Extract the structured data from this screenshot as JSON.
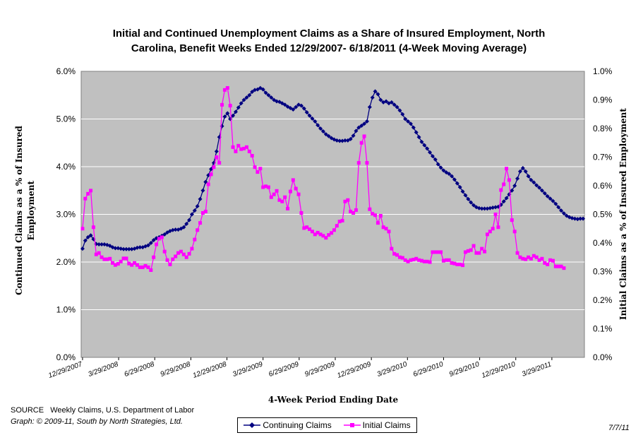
{
  "chart_data": {
    "type": "line",
    "title_lines": [
      "Initial and Continued Unemployment Claims as a Share of Insured Employment, North",
      "Carolina, Benefit Weeks Ended 12/29/2007- 6/18/2011 (4-Week Moving Average)"
    ],
    "xlabel": "4-Week Period Ending Date",
    "ylabel_left_lines": [
      "Continued Claims as a % of Insured",
      "Employment"
    ],
    "ylabel_right": "Initial Claims as a % of Insured Employment",
    "ylim_left": [
      0,
      6
    ],
    "ylim_right": [
      0,
      1
    ],
    "yticks_left": [
      "0.0%",
      "1.0%",
      "2.0%",
      "3.0%",
      "4.0%",
      "5.0%",
      "6.0%"
    ],
    "yticks_right": [
      "0.0%",
      "0.1%",
      "0.2%",
      "0.3%",
      "0.4%",
      "0.5%",
      "0.6%",
      "0.7%",
      "0.8%",
      "0.9%",
      "1.0%"
    ],
    "xticks": [
      "12/29/2007",
      "3/29/2008",
      "6/29/2008",
      "9/29/2008",
      "12/29/2008",
      "3/29/2009",
      "6/29/2009",
      "9/29/2009",
      "12/29/2009",
      "3/29/2010",
      "6/29/2010",
      "9/29/2010",
      "12/29/2010",
      "3/29/2011"
    ],
    "grid": true,
    "legend_position": "bottom",
    "plot_background": "#c0c0c0",
    "series": [
      {
        "name": "Continuing Claims",
        "axis": "left",
        "color": "#000080",
        "marker": "diamond",
        "values": [
          2.28,
          2.45,
          2.52,
          2.56,
          2.48,
          2.38,
          2.37,
          2.37,
          2.37,
          2.36,
          2.34,
          2.31,
          2.29,
          2.29,
          2.28,
          2.27,
          2.27,
          2.27,
          2.27,
          2.28,
          2.3,
          2.31,
          2.31,
          2.33,
          2.35,
          2.4,
          2.46,
          2.5,
          2.52,
          2.55,
          2.58,
          2.62,
          2.65,
          2.67,
          2.68,
          2.68,
          2.7,
          2.73,
          2.8,
          2.88,
          3.0,
          3.08,
          3.17,
          3.32,
          3.5,
          3.68,
          3.82,
          3.95,
          4.08,
          4.32,
          4.62,
          4.85,
          5.05,
          5.12,
          5.0,
          5.07,
          5.15,
          5.24,
          5.33,
          5.4,
          5.45,
          5.5,
          5.57,
          5.61,
          5.62,
          5.65,
          5.62,
          5.55,
          5.5,
          5.45,
          5.4,
          5.37,
          5.36,
          5.33,
          5.3,
          5.26,
          5.23,
          5.2,
          5.25,
          5.3,
          5.28,
          5.22,
          5.14,
          5.07,
          5.01,
          4.95,
          4.87,
          4.8,
          4.74,
          4.68,
          4.64,
          4.6,
          4.57,
          4.55,
          4.54,
          4.54,
          4.55,
          4.55,
          4.58,
          4.65,
          4.75,
          4.82,
          4.86,
          4.9,
          4.95,
          5.25,
          5.45,
          5.58,
          5.52,
          5.4,
          5.35,
          5.37,
          5.33,
          5.35,
          5.3,
          5.25,
          5.18,
          5.1,
          5.0,
          4.95,
          4.9,
          4.82,
          4.72,
          4.62,
          4.52,
          4.45,
          4.38,
          4.3,
          4.22,
          4.15,
          4.05,
          3.98,
          3.92,
          3.88,
          3.85,
          3.8,
          3.73,
          3.65,
          3.57,
          3.48,
          3.4,
          3.32,
          3.25,
          3.19,
          3.15,
          3.13,
          3.12,
          3.12,
          3.12,
          3.13,
          3.14,
          3.15,
          3.16,
          3.2,
          3.27,
          3.34,
          3.42,
          3.5,
          3.6,
          3.75,
          3.9,
          3.97,
          3.9,
          3.8,
          3.72,
          3.67,
          3.61,
          3.56,
          3.5,
          3.44,
          3.38,
          3.33,
          3.28,
          3.22,
          3.15,
          3.08,
          3.02,
          2.97,
          2.94,
          2.92,
          2.91,
          2.9,
          2.91,
          2.91
        ]
      },
      {
        "name": "Initial Claims",
        "axis": "right",
        "color": "#ff00ff",
        "marker": "square",
        "values": [
          0.45,
          0.555,
          0.572,
          0.583,
          0.455,
          0.36,
          0.365,
          0.35,
          0.343,
          0.343,
          0.345,
          0.33,
          0.323,
          0.327,
          0.335,
          0.346,
          0.346,
          0.328,
          0.323,
          0.33,
          0.323,
          0.315,
          0.315,
          0.32,
          0.315,
          0.305,
          0.35,
          0.395,
          0.415,
          0.42,
          0.37,
          0.34,
          0.325,
          0.343,
          0.353,
          0.365,
          0.37,
          0.36,
          0.35,
          0.362,
          0.38,
          0.412,
          0.445,
          0.47,
          0.505,
          0.51,
          0.605,
          0.64,
          0.665,
          0.7,
          0.68,
          0.883,
          0.935,
          0.942,
          0.88,
          0.735,
          0.72,
          0.74,
          0.728,
          0.73,
          0.735,
          0.72,
          0.705,
          0.665,
          0.648,
          0.66,
          0.595,
          0.598,
          0.595,
          0.56,
          0.57,
          0.582,
          0.55,
          0.545,
          0.56,
          0.52,
          0.58,
          0.62,
          0.59,
          0.57,
          0.505,
          0.452,
          0.455,
          0.448,
          0.44,
          0.43,
          0.436,
          0.43,
          0.425,
          0.418,
          0.428,
          0.435,
          0.445,
          0.46,
          0.475,
          0.478,
          0.545,
          0.55,
          0.51,
          0.505,
          0.515,
          0.68,
          0.75,
          0.773,
          0.68,
          0.518,
          0.502,
          0.497,
          0.47,
          0.495,
          0.455,
          0.45,
          0.44,
          0.38,
          0.362,
          0.358,
          0.35,
          0.348,
          0.34,
          0.335,
          0.34,
          0.342,
          0.345,
          0.34,
          0.338,
          0.335,
          0.335,
          0.333,
          0.368,
          0.368,
          0.368,
          0.368,
          0.338,
          0.34,
          0.34,
          0.33,
          0.328,
          0.325,
          0.325,
          0.322,
          0.368,
          0.372,
          0.375,
          0.39,
          0.365,
          0.365,
          0.38,
          0.37,
          0.43,
          0.44,
          0.45,
          0.5,
          0.455,
          0.585,
          0.605,
          0.66,
          0.62,
          0.48,
          0.44,
          0.365,
          0.35,
          0.345,
          0.343,
          0.35,
          0.345,
          0.355,
          0.35,
          0.34,
          0.345,
          0.33,
          0.325,
          0.34,
          0.338,
          0.318,
          0.318,
          0.318,
          0.312
        ]
      }
    ]
  },
  "footer": {
    "source_label": "SOURCE",
    "source_text": "Weekly Claims, U.S. Department of Labor",
    "graph_credit": "Graph: © 2009-11, South by North Strategies, Ltd.",
    "date": "7/7/11"
  }
}
